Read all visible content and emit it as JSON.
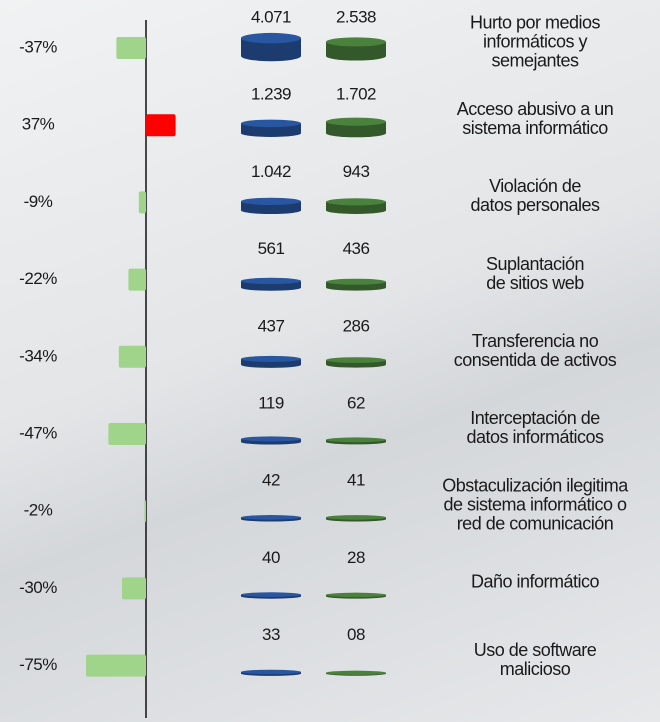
{
  "chart_data": {
    "type": "infographic",
    "categories": [
      "Hurto por medios\ninformáticos y\nsemejantes",
      "Acceso abusivo a un\nsistema informático",
      "Violación de\ndatos personales",
      "Suplantación\nde sitios web",
      "Transferencia no\nconsentida de activos",
      "Interceptación de\ndatos informáticos",
      "Obstaculización ilegitima\nde sistema informático o\nred de comunicación",
      "Daño informático",
      "Uso de software\nmalicioso"
    ],
    "change": {
      "values": [
        -37,
        37,
        -9,
        -22,
        -34,
        -47,
        -2,
        -30,
        -75
      ],
      "value_labels": [
        "-37%",
        "37%",
        "-9%",
        "-22%",
        "-34%",
        "-47%",
        "-2%",
        "-30%",
        "-75%"
      ],
      "positive_color": "#ff0000",
      "negative_color": "#9fd48a"
    },
    "series": [
      {
        "color": "#1c3b6e",
        "values": [
          4071,
          1239,
          1042,
          561,
          437,
          119,
          42,
          40,
          33
        ],
        "value_labels": [
          "4.071",
          "1.239",
          "1.042",
          "561",
          "437",
          "119",
          "42",
          "40",
          "33"
        ]
      },
      {
        "color": "#33592a",
        "values": [
          2538,
          1702,
          943,
          436,
          286,
          62,
          41,
          28,
          8
        ],
        "value_labels": [
          "2.538",
          "1.702",
          "943",
          "436",
          "286",
          "62",
          "41",
          "28",
          "08"
        ]
      }
    ]
  }
}
